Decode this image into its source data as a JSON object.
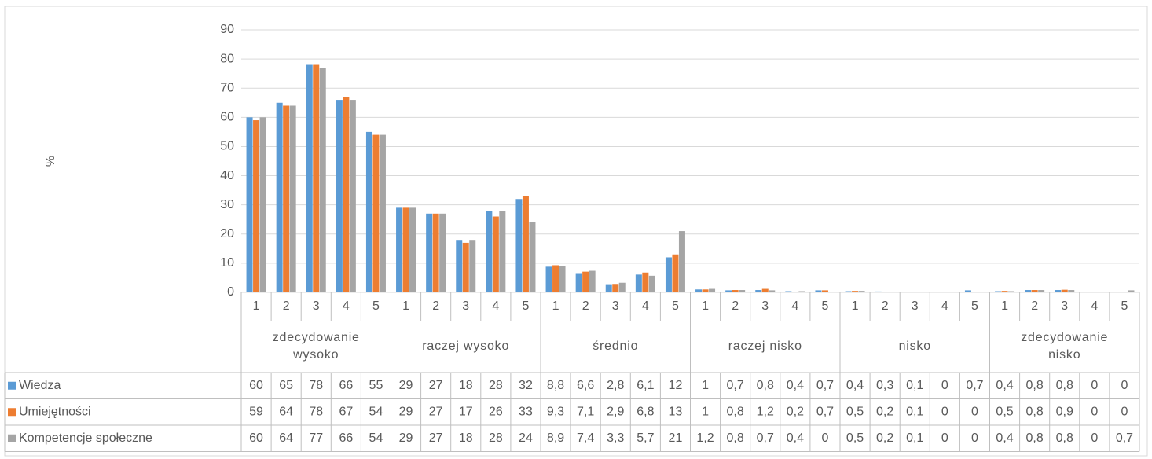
{
  "chart_data": {
    "type": "bar",
    "y_label": "%",
    "groups": [
      "zdecydowanie wysoko",
      "raczej wysoko",
      "średnio",
      "raczej nisko",
      "nisko",
      "zdecydowanie nisko"
    ],
    "categories": [
      "1",
      "2",
      "3",
      "4",
      "5",
      "1",
      "2",
      "3",
      "4",
      "5",
      "1",
      "2",
      "3",
      "4",
      "5",
      "1",
      "2",
      "3",
      "4",
      "5",
      "1",
      "2",
      "3",
      "4",
      "5",
      "1",
      "2",
      "3",
      "4",
      "5"
    ],
    "series": [
      {
        "name": "Wiedza",
        "color": "#5b9bd5",
        "values": [
          60,
          65,
          78,
          66,
          55,
          29,
          27,
          18,
          28,
          32,
          8.8,
          6.6,
          2.8,
          6.1,
          12,
          1,
          0.7,
          0.8,
          0.4,
          0.7,
          0.4,
          0.3,
          0.1,
          0,
          0.7,
          0.4,
          0.8,
          0.8,
          0,
          0
        ],
        "value_labels": [
          "60",
          "65",
          "78",
          "66",
          "55",
          "29",
          "27",
          "18",
          "28",
          "32",
          "8,8",
          "6,6",
          "2,8",
          "6,1",
          "12",
          "1",
          "0,7",
          "0,8",
          "0,4",
          "0,7",
          "0,4",
          "0,3",
          "0,1",
          "0",
          "0,7",
          "0,4",
          "0,8",
          "0,8",
          "0",
          "0"
        ]
      },
      {
        "name": "Umiejętności",
        "color": "#ed7d31",
        "values": [
          59,
          64,
          78,
          67,
          54,
          29,
          27,
          17,
          26,
          33,
          9.3,
          7.1,
          2.9,
          6.8,
          13,
          1,
          0.8,
          1.2,
          0.2,
          0.7,
          0.5,
          0.2,
          0.1,
          0,
          0,
          0.5,
          0.8,
          0.9,
          0,
          0
        ],
        "value_labels": [
          "59",
          "64",
          "78",
          "67",
          "54",
          "29",
          "27",
          "17",
          "26",
          "33",
          "9,3",
          "7,1",
          "2,9",
          "6,8",
          "13",
          "1",
          "0,8",
          "1,2",
          "0,2",
          "0,7",
          "0,5",
          "0,2",
          "0,1",
          "0",
          "0",
          "0,5",
          "0,8",
          "0,9",
          "0",
          "0"
        ]
      },
      {
        "name": "Kompetencje społeczne",
        "color": "#a5a5a5",
        "values": [
          60,
          64,
          77,
          66,
          54,
          29,
          27,
          18,
          28,
          24,
          8.9,
          7.4,
          3.3,
          5.7,
          21,
          1.2,
          0.8,
          0.7,
          0.4,
          0,
          0.5,
          0.2,
          0.1,
          0,
          0,
          0.4,
          0.8,
          0.8,
          0,
          0.7
        ],
        "value_labels": [
          "60",
          "64",
          "77",
          "66",
          "54",
          "29",
          "27",
          "18",
          "28",
          "24",
          "8,9",
          "7,4",
          "3,3",
          "5,7",
          "21",
          "1,2",
          "0,8",
          "0,7",
          "0,4",
          "0",
          "0,5",
          "0,2",
          "0,1",
          "0",
          "0",
          "0,4",
          "0,8",
          "0,8",
          "0",
          "0,7"
        ]
      }
    ],
    "ylim": [
      0,
      90
    ],
    "yticks": [
      0,
      10,
      20,
      30,
      40,
      50,
      60,
      70,
      80,
      90
    ],
    "grid": true,
    "legend": "table"
  }
}
